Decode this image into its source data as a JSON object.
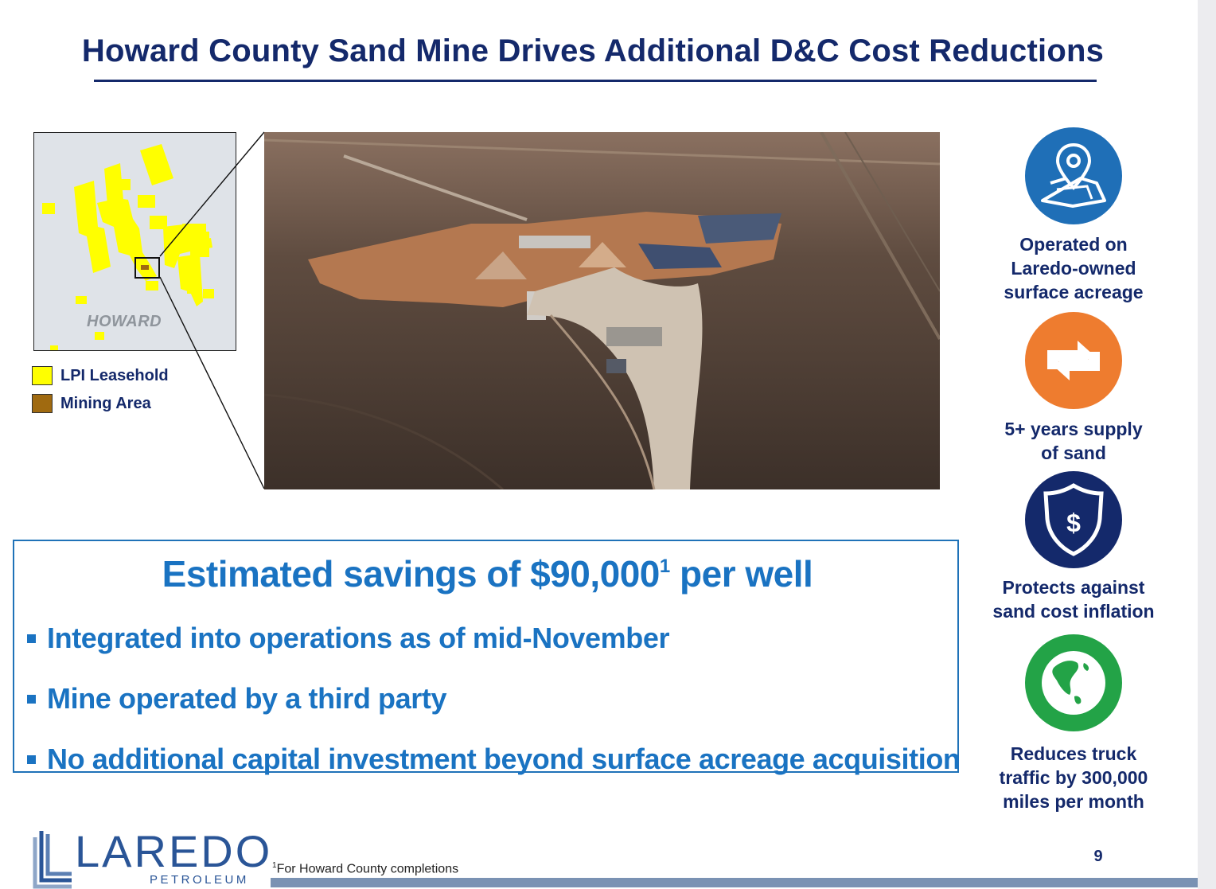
{
  "title": "Howard County Sand Mine Drives Additional D&C Cost Reductions",
  "map": {
    "county_label": "HOWARD"
  },
  "legend": [
    {
      "label": "LPI Leasehold",
      "color": "#ffff00"
    },
    {
      "label": "Mining Area",
      "color": "#a06a10"
    }
  ],
  "callout": {
    "headline_prefix": "Estimated savings of $90,000",
    "headline_sup": "1",
    "headline_suffix": " per well",
    "bullets": [
      "Integrated into operations as of mid-November",
      "Mine operated by a third party",
      "No additional capital investment beyond surface acreage acquisition"
    ]
  },
  "features": [
    {
      "icon": "map-pin-icon",
      "color": "#1f6fb7",
      "line1": "Operated on",
      "line2": "Laredo-owned",
      "line3": "surface acreage"
    },
    {
      "icon": "swap-arrows-icon",
      "color": "#ee7c2f",
      "line1": "5+ years supply",
      "line2": "of sand"
    },
    {
      "icon": "dollar-shield-icon",
      "color": "#14296b",
      "line1": "Protects against",
      "line2": "sand cost inflation"
    },
    {
      "icon": "globe-icon",
      "color": "#23a347",
      "line1": "Reduces truck",
      "line2": "traffic by 300,000",
      "line3": "miles per month"
    }
  ],
  "logo": {
    "word": "LAREDO",
    "sub": "PETROLEUM"
  },
  "footnote": {
    "sup": "1",
    "text": "For Howard County completions"
  },
  "page_number": "9"
}
